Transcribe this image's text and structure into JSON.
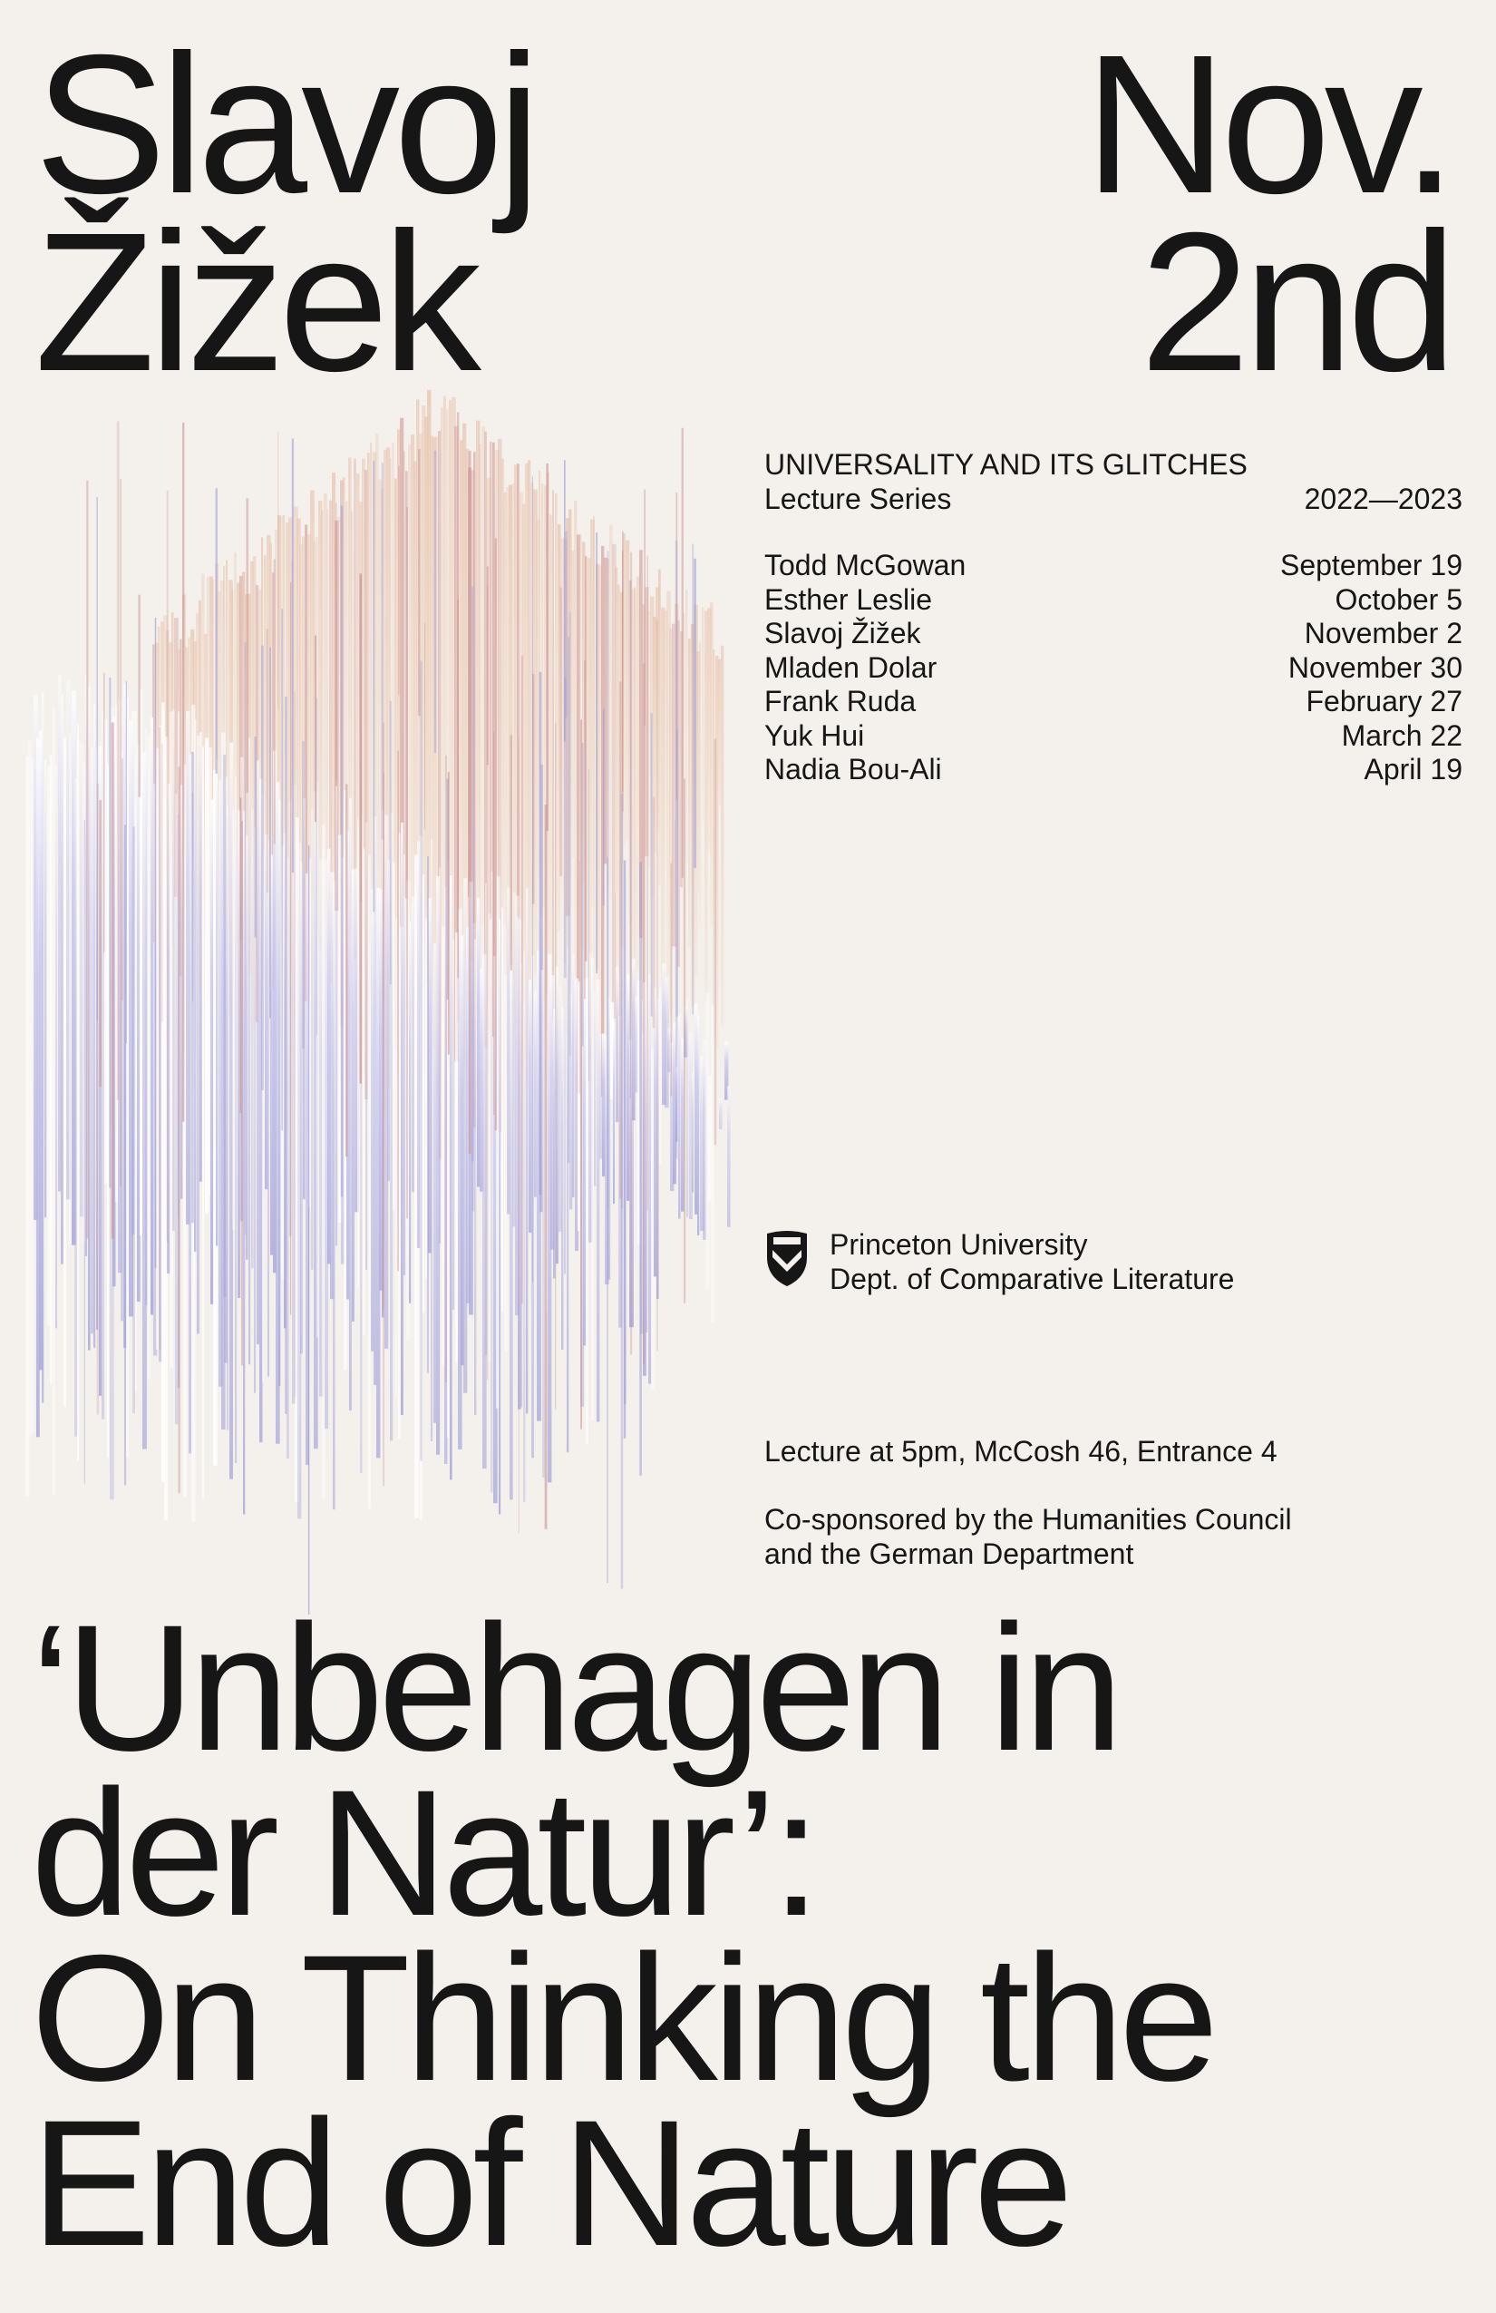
{
  "speaker": {
    "line1": "Slavoj",
    "line2": "Žižek"
  },
  "date": {
    "line1": "Nov.",
    "line2": "2nd"
  },
  "series": {
    "title": "UNIVERSALITY AND ITS GLITCHES",
    "subtitle": "Lecture Series",
    "years": "2022—2023"
  },
  "schedule": [
    {
      "name": "Todd McGowan",
      "date": "September 19"
    },
    {
      "name": "Esther Leslie",
      "date": "October 5"
    },
    {
      "name": "Slavoj Žižek",
      "date": "November 2"
    },
    {
      "name": "Mladen Dolar",
      "date": "November 30"
    },
    {
      "name": "Frank Ruda",
      "date": "February 27"
    },
    {
      "name": "Yuk Hui",
      "date": "March 22"
    },
    {
      "name": "Nadia Bou-Ali",
      "date": "April 19"
    }
  ],
  "institution": {
    "line1": "Princeton University",
    "line2": "Dept. of Comparative Literature",
    "icon": "princeton-shield-icon"
  },
  "venue": "Lecture at 5pm, McCosh 46, Entrance 4",
  "sponsor": {
    "line1": "Co-sponsored by the Humanities Council",
    "line2": "and the German Department"
  },
  "talk_title": {
    "line1": "‘Unbehagen in",
    "line2": "der Natur’:",
    "line3": "On Thinking the",
    "line4": "End of Nature"
  },
  "colors": {
    "background": "#f4f0eb",
    "text": "#161616",
    "glitch_warm": "#e8c4b0",
    "glitch_cool": "#aaaadd"
  }
}
